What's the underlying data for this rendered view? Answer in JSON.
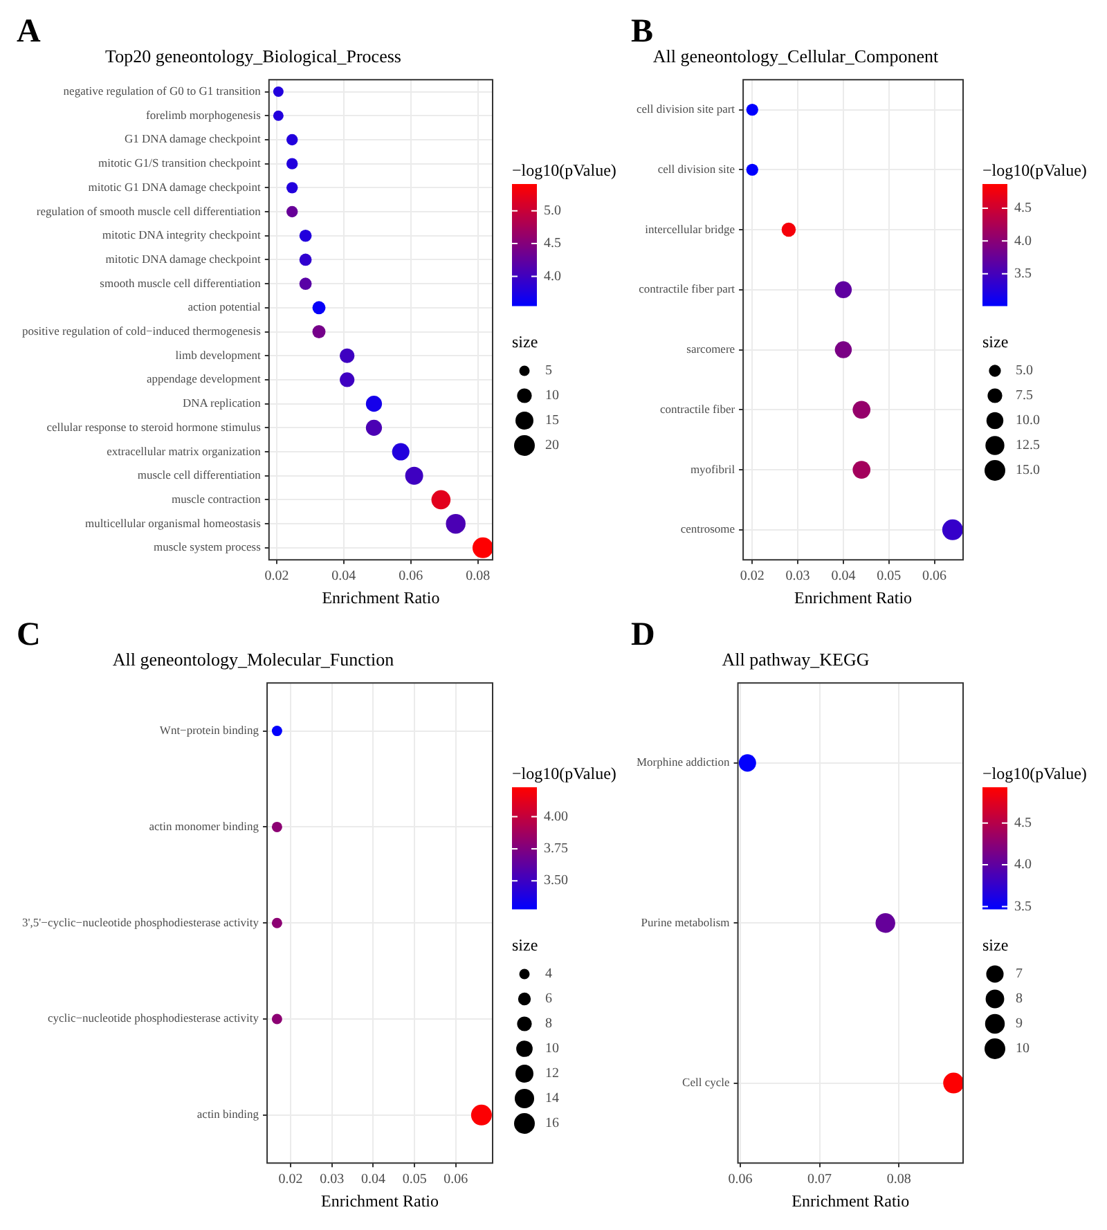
{
  "chart_data": [
    {
      "type": "bubble",
      "title": "Top20 geneontology_Biological_Process",
      "xlabel": "Enrichment Ratio",
      "orientation": "horizontal",
      "annotations": [
        "A"
      ],
      "categories": [
        "negative regulation of G0 to G1 transition",
        "forelimb morphogenesis",
        "G1 DNA damage checkpoint",
        "mitotic G1/S transition checkpoint",
        "mitotic G1 DNA damage checkpoint",
        "regulation of smooth muscle cell differentiation",
        "mitotic DNA integrity checkpoint",
        "mitotic DNA damage checkpoint",
        "smooth muscle cell differentiation",
        "action potential",
        "positive regulation of cold−induced thermogenesis",
        "limb development",
        "appendage development",
        "DNA replication",
        "cellular response to steroid hormone stimulus",
        "extracellular matrix organization",
        "muscle cell differentiation",
        "muscle contraction",
        "multicellular organismal homeostasis",
        "muscle system process"
      ],
      "values": [
        0.0205,
        0.0205,
        0.0246,
        0.0246,
        0.0246,
        0.0246,
        0.0286,
        0.0286,
        0.0286,
        0.0326,
        0.0326,
        0.041,
        0.041,
        0.049,
        0.049,
        0.057,
        0.061,
        0.069,
        0.0734,
        0.0815
      ],
      "sizes": [
        5,
        5,
        6,
        6,
        6,
        6,
        7,
        7,
        7,
        8,
        8,
        10,
        10,
        12,
        12,
        14,
        15,
        17,
        18,
        20
      ],
      "cvalues": [
        3.8,
        3.8,
        3.8,
        3.8,
        3.8,
        4.3,
        3.8,
        3.9,
        4.2,
        3.6,
        4.4,
        4.0,
        4.0,
        3.7,
        4.1,
        3.8,
        4.0,
        5.2,
        4.1,
        5.4
      ],
      "size_legend": [
        5,
        10,
        15,
        20
      ],
      "legend_title": "size",
      "clabel": "−log10(pValue)",
      "clim": [
        3.55,
        5.41
      ],
      "cticks": [
        {
          "value": 4,
          "label": "4.0"
        },
        {
          "value": 4.5,
          "label": "4.5"
        },
        {
          "value": 5,
          "label": "5.0"
        }
      ],
      "xlim": [
        0.0177,
        0.0844
      ],
      "xticks": [
        0.02,
        0.04,
        0.06,
        0.08
      ],
      "grid": true
    },
    {
      "type": "bubble",
      "title": "All geneontology_Cellular_Component",
      "xlabel": "Enrichment Ratio",
      "orientation": "horizontal",
      "annotations": [
        "B"
      ],
      "categories": [
        "cell division site part",
        "cell division site",
        "intercellular bridge",
        "contractile fiber part",
        "sarcomere",
        "contractile fiber",
        "myofibril",
        "centrosome"
      ],
      "values": [
        0.02,
        0.02,
        0.028,
        0.04,
        0.04,
        0.044,
        0.044,
        0.064
      ],
      "sizes": [
        5,
        5,
        7,
        10,
        10,
        11,
        11,
        15
      ],
      "cvalues": [
        3.02,
        3.02,
        4.8,
        3.7,
        3.9,
        4.1,
        4.2,
        3.4
      ],
      "size_legend": [
        {
          "value": 5,
          "label": "5.0"
        },
        {
          "value": 7.5,
          "label": "7.5"
        },
        {
          "value": 10,
          "label": "10.0"
        },
        {
          "value": 12.5,
          "label": "12.5"
        },
        {
          "value": 15,
          "label": "15.0"
        }
      ],
      "legend_title": "size",
      "clabel": "−log10(pValue)",
      "clim": [
        3.01,
        4.87
      ],
      "cticks": [
        3.5,
        {
          "value": 4,
          "label": "4.0"
        },
        4.5
      ],
      "xlim": [
        0.018,
        0.0663
      ],
      "xticks": [
        0.02,
        0.03,
        0.04,
        0.05,
        0.06
      ],
      "grid": true
    },
    {
      "type": "bubble",
      "title": "All geneontology_Molecular_Function",
      "xlabel": "Enrichment Ratio",
      "orientation": "horizontal",
      "annotations": [
        "C"
      ],
      "categories": [
        "Wnt−protein binding",
        "actin monomer binding",
        "3',5'−cyclic−nucleotide phosphodiesterase activity",
        "cyclic−nucleotide phosphodiesterase activity",
        "actin binding"
      ],
      "values": [
        0.0167,
        0.0167,
        0.0167,
        0.0167,
        0.0662
      ],
      "sizes": [
        4,
        4,
        4,
        4,
        16
      ],
      "cvalues": [
        3.29,
        3.8,
        3.8,
        3.8,
        4.22
      ],
      "size_legend": [
        4,
        6,
        8,
        10,
        12,
        14,
        16
      ],
      "legend_title": "size",
      "clabel": "−log10(pValue)",
      "clim": [
        3.28,
        4.23
      ],
      "cticks": [
        {
          "value": 3.5,
          "label": "3.50"
        },
        3.75,
        {
          "value": 4,
          "label": "4.00"
        }
      ],
      "xlim": [
        0.0143,
        0.0689
      ],
      "xticks": [
        0.02,
        0.03,
        0.04,
        0.05,
        0.06
      ],
      "grid": true
    },
    {
      "type": "bubble",
      "title": "All pathway_KEGG",
      "xlabel": "Enrichment Ratio",
      "orientation": "horizontal",
      "annotations": [
        "D"
      ],
      "categories": [
        "Morphine addiction",
        "Purine metabolism",
        "Cell cycle"
      ],
      "values": [
        0.0609,
        0.0783,
        0.0869
      ],
      "sizes": [
        7,
        9,
        10
      ],
      "cvalues": [
        3.48,
        4.05,
        4.92
      ],
      "size_legend": [
        7,
        8,
        9,
        10
      ],
      "legend_title": "size",
      "clabel": "−log10(pValue)",
      "clim": [
        3.47,
        4.93
      ],
      "cticks": [
        3.5,
        {
          "value": 4,
          "label": "4.0"
        },
        4.5
      ],
      "xlim": [
        0.0597,
        0.0881
      ],
      "xticks": [
        0.06,
        0.07,
        0.08
      ],
      "grid": true
    }
  ]
}
